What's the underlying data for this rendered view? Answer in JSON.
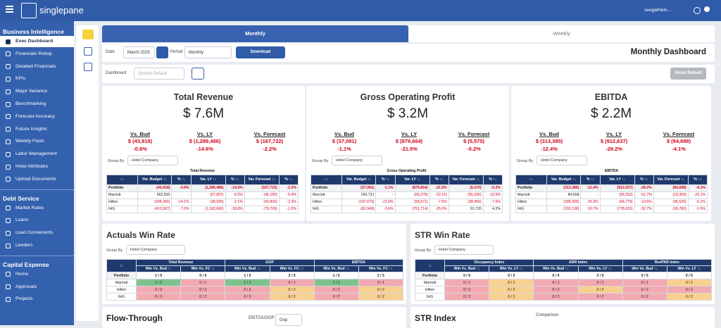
{
  "header": {
    "logo": "singlepane",
    "user": "seegalHein..."
  },
  "sidebar": {
    "sections": [
      {
        "title": "Business Intelligence",
        "items": [
          "Exec Dashboard",
          "Financials Rollup",
          "Detailed Financials",
          "KPIs",
          "Major Variance",
          "Benchmarking",
          "Forecast Accuracy",
          "Future Insights",
          "Weekly Flash",
          "Labor Management",
          "Hotel Attributes",
          "Upload Documents"
        ]
      },
      {
        "title": "Debt Service",
        "items": [
          "Market Rates",
          "Loans",
          "Loan Convenants",
          "Lenders"
        ]
      },
      {
        "title": "Capital Expense",
        "items": [
          "Home",
          "Approvals",
          "Projects"
        ]
      }
    ]
  },
  "tabs": [
    "Monthly",
    "Weekly"
  ],
  "filters": {
    "date_label": "Date",
    "date": "March 2025",
    "period_label": "Period",
    "period": "Monthly",
    "download": "Download",
    "page_title": "Monthly Dashboard",
    "dashboard_label": "Dashboard",
    "dashboard": "System Default",
    "reset": "Reset Default"
  },
  "kpi_cards": [
    {
      "title": "Total Revenue",
      "value": "$ 7.6M",
      "comparisons": [
        {
          "label": "Vs. Bud",
          "value": "$ (43,918)",
          "pct": "-0.6%"
        },
        {
          "label": "Vs. LY",
          "value": "$ (1,289,486)",
          "pct": "-14.6%"
        },
        {
          "label": "Vs. Forecast",
          "value": "$ (167,722)",
          "pct": "-2.2%"
        }
      ],
      "group_by_label": "Group By",
      "group_by": "Hotel Company",
      "table": {
        "title": "Total Revenue",
        "columns": [
          "↑↓",
          "Var. Budget ↑↓",
          "% ↑↓",
          "Var. LY ↑↓",
          "% ↑↓",
          "Var. Forecast ↑↓",
          "% ↑↓"
        ],
        "rows": [
          [
            "Portfolio",
            "(43,918)",
            "-0.6%",
            "(1,289,486)",
            "-14.6%",
            "(167,722)",
            "-2.2%"
          ],
          [
            "Marriott",
            "662,930",
            "-",
            "(67,897)",
            "-9.3%",
            "(45,190)",
            "-6.4%"
          ],
          [
            "Hilton",
            "(294,281)",
            "-14.1%",
            "(38,925)",
            "-2.1%",
            "(42,833)",
            "-2.3%"
          ],
          [
            "IHG",
            "(412,567)",
            "-7.5%",
            "(1,182,660)",
            "-18.8%",
            "(79,709)",
            "-1.5%"
          ]
        ]
      }
    },
    {
      "title": "Gross Operating Profit",
      "value": "$ 3.2M",
      "comparisons": [
        {
          "label": "Vs. Bud",
          "value": "$ (37,091)",
          "pct": "-1.1%"
        },
        {
          "label": "Vs. LY",
          "value": "$ (879,664)",
          "pct": "-21.5%"
        },
        {
          "label": "Vs. Forecast",
          "value": "$ (5,570)",
          "pct": "-0.2%"
        }
      ],
      "group_by_label": "Group By",
      "group_by": "Hotel Company",
      "table": {
        "title": "Gross Operating Profit",
        "columns": [
          "↑↓",
          "Var. Budget ↑↓",
          "% ↑↓",
          "Var. LY ↑↓",
          "% ↑↓",
          "Var. Forecast ↑↓",
          "% ↑↓"
        ],
        "rows": [
          [
            "Portfolio",
            "(37,091)",
            "-1.1%",
            "(879,664)",
            "-21.5%",
            "(5,570)",
            "-0.2%"
          ],
          [
            "Marriott",
            "243,731",
            "-",
            "(65,278)",
            "-22.1%",
            "(55,330)",
            "-13.6%"
          ],
          [
            "Hilton",
            "(197,673)",
            "-21.6%",
            "(58,671)",
            "-7.5%",
            "(38,960)",
            "-7.6%"
          ],
          [
            "IHG",
            "(82,949)",
            "-3.6%",
            "(751,714)",
            "-25.0%",
            "91,720",
            "4.2%"
          ]
        ]
      }
    },
    {
      "title": "EBITDA",
      "value": "$ 2.2M",
      "comparisons": [
        {
          "label": "Vs. Bud",
          "value": "$ (313,385)",
          "pct": "-12.4%"
        },
        {
          "label": "Vs. LY",
          "value": "$ (912,637)",
          "pct": "-29.2%"
        },
        {
          "label": "Vs. Forecast",
          "value": "$ (94,698)",
          "pct": "-4.1%"
        }
      ],
      "group_by_label": "Group By",
      "group_by": "Hotel Company",
      "table": {
        "title": "EBITDA",
        "columns": [
          "↑↓",
          "Var. Budget ↑↓",
          "% ↑↓",
          "Var. LY ↑↓",
          "% ↑↓",
          "Var. Forecast ↑↓",
          "% ↑↓"
        ],
        "rows": [
          [
            "Portfolio",
            "(313,385)",
            "-12.4%",
            "(912,637)",
            "-29.2%",
            "(94,698)",
            "-4.1%"
          ],
          [
            "Marriott",
            "84,658",
            "-",
            "(55,252)",
            "-51.7%",
            "(19,359)",
            "-23.1%"
          ],
          [
            "Hilton",
            "(185,905)",
            "-25.3%",
            "(54,770)",
            "-10.6%",
            "(45,520)",
            "-6.1%"
          ],
          [
            "IHG",
            "(192,138)",
            "-10.7%",
            "(778,615)",
            "-32.7%",
            "(26,780)",
            "-1.6%"
          ]
        ]
      }
    }
  ],
  "win_rates": [
    {
      "title": "Actuals Win Rate",
      "group_by_label": "Group By",
      "group_by": "Hotel Company",
      "corner": "↑↓",
      "groups": [
        "Total Revenue",
        "GOP",
        "EBITDA"
      ],
      "subcolumns": [
        "Win Vs. Bud ↑↓",
        "Win Vs. FC ↑↓"
      ],
      "rows": [
        {
          "label": "Portfolio",
          "cells": [
            "1 / 5",
            "0 / 5",
            "1 / 5",
            "2 / 5",
            "1 / 5",
            "2 / 5"
          ],
          "colors": [
            "#ffffff",
            "#ffffff",
            "#ffffff",
            "#ffffff",
            "#ffffff",
            "#ffffff"
          ]
        },
        {
          "label": "Marriott",
          "cells": [
            "1 / 1",
            "0 / 1",
            "1 / 1",
            "0 / 1",
            "1 / 1",
            "0 / 1"
          ],
          "colors": [
            "#7fc28c",
            "#f3a9b0",
            "#7fc28c",
            "#f3a9b0",
            "#7fc28c",
            "#f3a9b0"
          ]
        },
        {
          "label": "Hilton",
          "cells": [
            "0 / 2",
            "0 / 2",
            "0 / 2",
            "0 / 2",
            "0 / 2",
            "0 / 2"
          ],
          "colors": [
            "#f3a9b0",
            "#f3a9b0",
            "#f3a9b0",
            "#f8d08f",
            "#f3a9b0",
            "#f8d08f"
          ]
        },
        {
          "label": "IHG",
          "cells": [
            "0 / 2",
            "0 / 2",
            "0 / 2",
            "0 / 2",
            "0 / 2",
            "0 / 2"
          ],
          "colors": [
            "#f3a9b0",
            "#f3a9b0",
            "#f3a9b0",
            "#f8d08f",
            "#f3a9b0",
            "#f8d08f"
          ]
        }
      ]
    },
    {
      "title": "STR Win Rate",
      "group_by_label": "Group By",
      "group_by": "Hotel Company",
      "corner": "↑↓",
      "groups": [
        "Occupancy Index",
        "ADR Index",
        "RevPAR Index"
      ],
      "subcolumns": [
        "Win Vs. Bud ↑↓",
        "Win Vs. LY ↑↓"
      ],
      "rows": [
        {
          "label": "Portfolio",
          "cells": [
            "0 / 5",
            "0 / 5",
            "0 / 5",
            "2 / 5",
            "0 / 5",
            "0 / 5"
          ],
          "colors": [
            "#ffffff",
            "#ffffff",
            "#ffffff",
            "#ffffff",
            "#ffffff",
            "#ffffff"
          ]
        },
        {
          "label": "Marriott",
          "cells": [
            "0 / 1",
            "0 / 1",
            "0 / 1",
            "0 / 1",
            "0 / 1",
            "0 / 1"
          ],
          "colors": [
            "#f3a9b0",
            "#f8d08f",
            "#f3a9b0",
            "#f3a9b0",
            "#f3a9b0",
            "#f8d08f"
          ]
        },
        {
          "label": "Hilton",
          "cells": [
            "0 / 2",
            "0 / 2",
            "0 / 2",
            "0 / 2",
            "0 / 2",
            "0 / 2"
          ],
          "colors": [
            "#f3a9b0",
            "#f8d08f",
            "#f3a9b0",
            "#f8d08f",
            "#f3a9b0",
            "#f3a9b0"
          ]
        },
        {
          "label": "IHG",
          "cells": [
            "0 / 2",
            "0 / 2",
            "0 / 2",
            "0 / 2",
            "0 / 2",
            "0 / 2"
          ],
          "colors": [
            "#f3a9b0",
            "#f8d08f",
            "#f3a9b0",
            "#f3a9b0",
            "#f3a9b0",
            "#f8d08f"
          ]
        }
      ]
    }
  ],
  "bottom": {
    "flow_title": "Flow-Through",
    "flow_label": "EBITDA/GOP",
    "flow_select": "Gop",
    "str_title": "STR Index",
    "str_label": "Comparison"
  }
}
